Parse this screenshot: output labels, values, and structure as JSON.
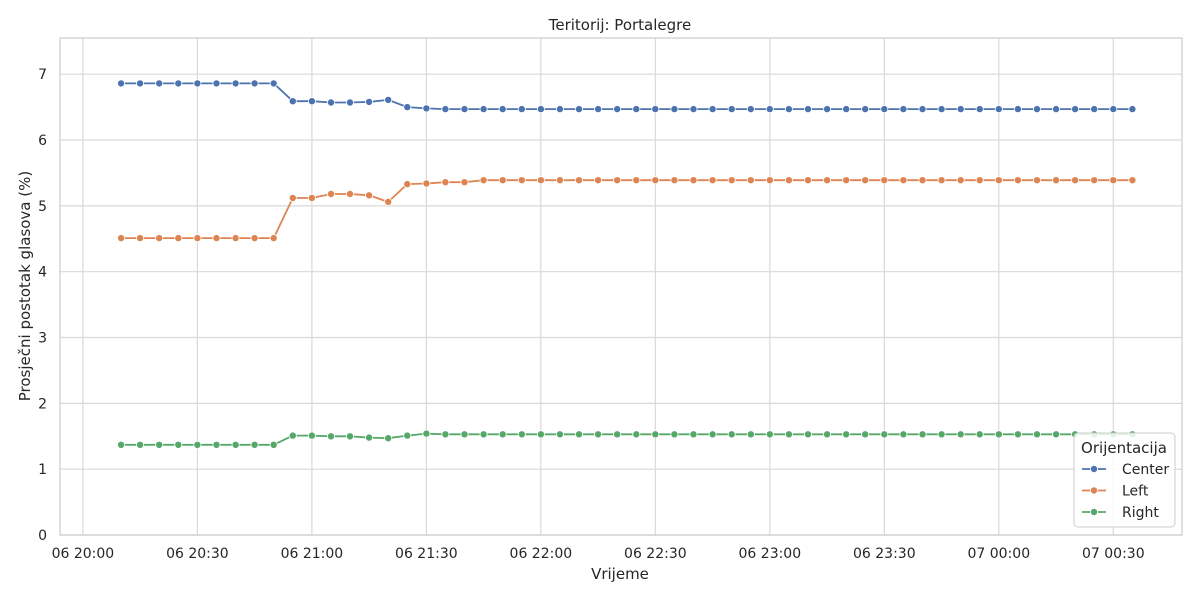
{
  "chart_data": {
    "type": "line",
    "title": "Teritorij: Portalegre",
    "xlabel": "Vrijeme",
    "ylabel": "Prosječni postotak glasova (%)",
    "ylim": [
      0,
      7.55
    ],
    "xlim": [
      "06 20:00",
      "07 00:48"
    ],
    "grid": true,
    "legend": {
      "title": "Orijentacija",
      "placement": "bottom-right"
    },
    "x_ticks": [
      "06 20:00",
      "06 20:30",
      "06 21:00",
      "06 21:30",
      "06 22:00",
      "06 22:30",
      "06 23:00",
      "06 23:30",
      "07 00:00",
      "07 00:30"
    ],
    "y_ticks": [
      0,
      1,
      2,
      3,
      4,
      5,
      6,
      7
    ],
    "x": [
      "06 20:10",
      "06 20:15",
      "06 20:20",
      "06 20:25",
      "06 20:30",
      "06 20:35",
      "06 20:40",
      "06 20:45",
      "06 20:50",
      "06 20:55",
      "06 21:00",
      "06 21:05",
      "06 21:10",
      "06 21:15",
      "06 21:20",
      "06 21:25",
      "06 21:30",
      "06 21:35",
      "06 21:40",
      "06 21:45",
      "06 21:50",
      "06 21:55",
      "06 22:00",
      "06 22:05",
      "06 22:10",
      "06 22:15",
      "06 22:20",
      "06 22:25",
      "06 22:30",
      "06 22:35",
      "06 22:40",
      "06 22:45",
      "06 22:50",
      "06 22:55",
      "06 23:00",
      "06 23:05",
      "06 23:10",
      "06 23:15",
      "06 23:20",
      "06 23:25",
      "06 23:30",
      "06 23:35",
      "06 23:40",
      "06 23:45",
      "06 23:50",
      "06 23:55",
      "07 00:00",
      "07 00:05",
      "07 00:10",
      "07 00:15",
      "07 00:20",
      "07 00:25",
      "07 00:30",
      "07 00:35"
    ],
    "series": [
      {
        "name": "Center",
        "color": "#4c72b0",
        "values": [
          6.86,
          6.86,
          6.86,
          6.86,
          6.86,
          6.86,
          6.86,
          6.86,
          6.86,
          6.59,
          6.59,
          6.57,
          6.57,
          6.58,
          6.61,
          6.5,
          6.48,
          6.47,
          6.47,
          6.47,
          6.47,
          6.47,
          6.47,
          6.47,
          6.47,
          6.47,
          6.47,
          6.47,
          6.47,
          6.47,
          6.47,
          6.47,
          6.47,
          6.47,
          6.47,
          6.47,
          6.47,
          6.47,
          6.47,
          6.47,
          6.47,
          6.47,
          6.47,
          6.47,
          6.47,
          6.47,
          6.47,
          6.47,
          6.47,
          6.47,
          6.47,
          6.47,
          6.47,
          6.47
        ]
      },
      {
        "name": "Left",
        "color": "#dd8452",
        "values": [
          4.51,
          4.51,
          4.51,
          4.51,
          4.51,
          4.51,
          4.51,
          4.51,
          4.51,
          5.12,
          5.12,
          5.18,
          5.18,
          5.16,
          5.06,
          5.33,
          5.34,
          5.36,
          5.36,
          5.39,
          5.39,
          5.39,
          5.39,
          5.39,
          5.39,
          5.39,
          5.39,
          5.39,
          5.39,
          5.39,
          5.39,
          5.39,
          5.39,
          5.39,
          5.39,
          5.39,
          5.39,
          5.39,
          5.39,
          5.39,
          5.39,
          5.39,
          5.39,
          5.39,
          5.39,
          5.39,
          5.39,
          5.39,
          5.39,
          5.39,
          5.39,
          5.39,
          5.39,
          5.39
        ]
      },
      {
        "name": "Right",
        "color": "#55a868",
        "values": [
          1.37,
          1.37,
          1.37,
          1.37,
          1.37,
          1.37,
          1.37,
          1.37,
          1.37,
          1.51,
          1.51,
          1.5,
          1.5,
          1.48,
          1.47,
          1.51,
          1.54,
          1.53,
          1.53,
          1.53,
          1.53,
          1.53,
          1.53,
          1.53,
          1.53,
          1.53,
          1.53,
          1.53,
          1.53,
          1.53,
          1.53,
          1.53,
          1.53,
          1.53,
          1.53,
          1.53,
          1.53,
          1.53,
          1.53,
          1.53,
          1.53,
          1.53,
          1.53,
          1.53,
          1.53,
          1.53,
          1.53,
          1.53,
          1.53,
          1.53,
          1.53,
          1.53,
          1.53,
          1.53
        ]
      }
    ]
  }
}
